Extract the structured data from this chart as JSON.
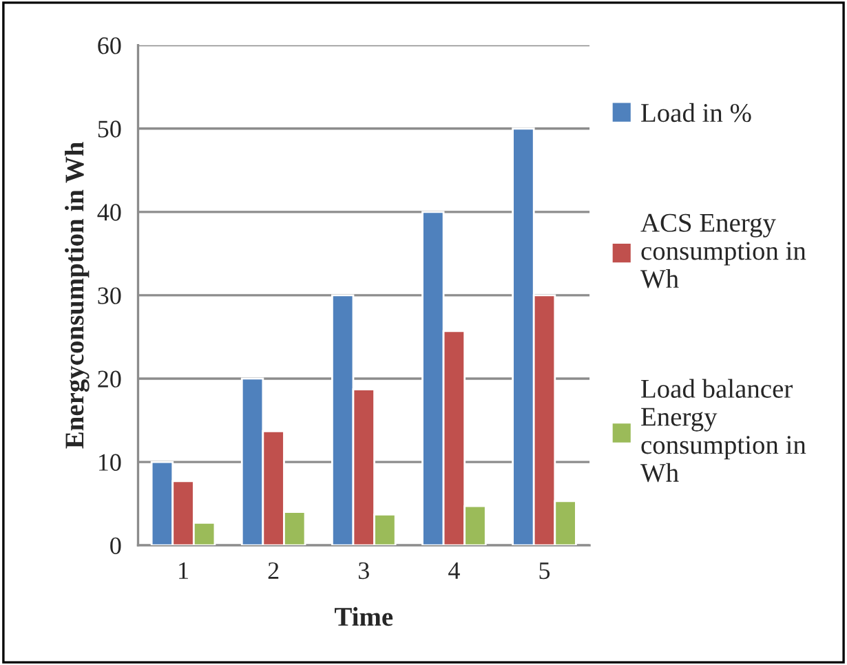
{
  "chart_data": {
    "type": "bar",
    "xlabel": "Time",
    "ylabel": "Energyconsumption in Wh",
    "categories": [
      "1",
      "2",
      "3",
      "4",
      "5"
    ],
    "series": [
      {
        "name": "Load in %",
        "color": "#4f81bd",
        "values": [
          10,
          20,
          30,
          40,
          50
        ]
      },
      {
        "name": "ACS Energy consumption in Wh",
        "color": "#c0504d",
        "values": [
          7.7,
          13.7,
          18.7,
          25.7,
          30
        ]
      },
      {
        "name": "Load balancer Energy consumption in Wh",
        "color": "#9bbb59",
        "values": [
          2.7,
          4.0,
          3.7,
          4.7,
          5.3
        ]
      }
    ],
    "ylim": [
      0,
      60
    ],
    "yticks": [
      0,
      10,
      20,
      30,
      40,
      50,
      60
    ],
    "grid": "y",
    "legend": "right"
  }
}
